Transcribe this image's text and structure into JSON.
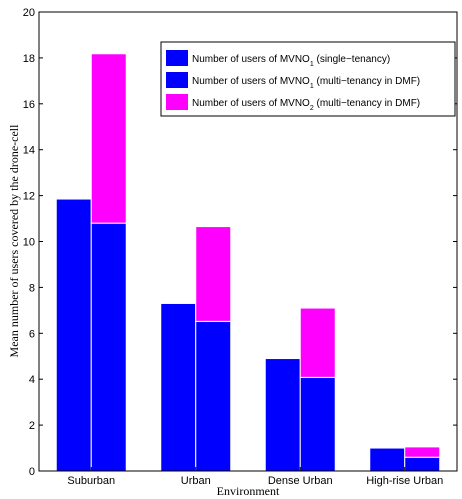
{
  "chart_data": {
    "type": "bar",
    "title": "",
    "xlabel": "Environment",
    "ylabel": "Mean number of users covered by the drone-cell",
    "categories": [
      "Suburban",
      "Urban",
      "Dense Urban",
      "High-rise Urban"
    ],
    "ylim": [
      0,
      20
    ],
    "yticks": [
      0,
      2,
      4,
      6,
      8,
      10,
      12,
      14,
      16,
      18,
      20
    ],
    "grid": false,
    "legend_position": "top-right",
    "bars": [
      {
        "name": "single-tenancy",
        "stack": [
          {
            "series": "Number of users of MVNO1 (single-tenancy)",
            "values": [
              11.85,
              7.3,
              4.9,
              1.0
            ]
          }
        ]
      },
      {
        "name": "multi-tenancy",
        "stack": [
          {
            "series": "Number of users of MVNO1 (multi-tenancy in DMF)",
            "values": [
              10.8,
              6.52,
              4.08,
              0.6
            ]
          },
          {
            "series": "Number of users of MVNO2 (multi-tenancy in DMF)",
            "values": [
              7.38,
              4.13,
              3.02,
              0.45
            ]
          }
        ]
      }
    ],
    "legend": [
      {
        "prefix": "Number of users of MVNO",
        "sub": "1",
        "suffix": " (single−tenancy)",
        "color": "#0000ff"
      },
      {
        "prefix": "Number of users of MVNO",
        "sub": "1",
        "suffix": " (multi−tenancy in DMF)",
        "color": "#0000ff"
      },
      {
        "prefix": "Number of users of MVNO",
        "sub": "2",
        "suffix": " (multi−tenancy in DMF)",
        "color": "#ff00ff"
      }
    ],
    "colors": {
      "mvno1": "#0000ff",
      "mvno2": "#ff00ff",
      "bar_edge": "#ffffff"
    }
  }
}
